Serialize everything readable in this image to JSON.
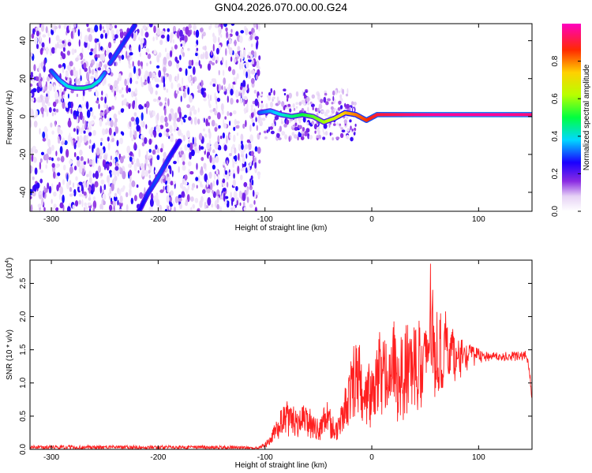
{
  "chart_data": [
    {
      "type": "heatmap",
      "title": "GN04.2026.070.00.00.G24",
      "xlabel": "Height of straight line (km)",
      "ylabel": "Frequency (Hz)",
      "xlim": [
        -320,
        150
      ],
      "ylim": [
        -50,
        49
      ],
      "xticks": [
        -300,
        -200,
        -100,
        0,
        100
      ],
      "yticks": [
        -40,
        -20,
        0,
        20,
        40
      ],
      "colorbar": {
        "label": "Normalized spectral amplitude",
        "range": [
          0,
          1
        ],
        "ticks": [
          "0.0",
          "0.2",
          "0.4",
          "0.6",
          "0.8"
        ],
        "tick_values": [
          0,
          0.2,
          0.4,
          0.6,
          0.8
        ]
      },
      "traces": [
        {
          "name": "main-signal",
          "x": [
            -105,
            -95,
            -85,
            -75,
            -65,
            -55,
            -45,
            -35,
            -25,
            -15,
            -5,
            5,
            20,
            40,
            60,
            80,
            100,
            120,
            150
          ],
          "y": [
            2,
            3,
            1,
            0,
            1,
            0,
            -3,
            -1,
            2,
            1,
            -2,
            1,
            1,
            1,
            1,
            1,
            1,
            1,
            1
          ],
          "amplitude": [
            0.3,
            0.35,
            0.4,
            0.45,
            0.5,
            0.55,
            0.6,
            0.65,
            0.75,
            0.8,
            0.85,
            0.9,
            0.92,
            0.95,
            0.97,
            0.97,
            0.97,
            0.97,
            0.95
          ]
        },
        {
          "name": "ghost-arc",
          "x": [
            -300,
            -292,
            -285,
            -278,
            -270,
            -262,
            -255,
            -250
          ],
          "y": [
            24,
            19,
            16,
            15,
            15,
            16,
            19,
            23
          ],
          "amplitude": [
            0.3,
            0.35,
            0.4,
            0.42,
            0.45,
            0.42,
            0.38,
            0.32
          ]
        },
        {
          "name": "ghost-rising",
          "x": [
            -245,
            -238,
            -230,
            -222
          ],
          "y": [
            28,
            34,
            41,
            48
          ],
          "amplitude": [
            0.3,
            0.3,
            0.28,
            0.28
          ]
        },
        {
          "name": "ghost-falling",
          "x": [
            -218,
            -210,
            -200,
            -190,
            -180
          ],
          "y": [
            -50,
            -41,
            -32,
            -22,
            -13
          ],
          "amplitude": [
            0.25,
            0.28,
            0.3,
            0.28,
            0.25
          ]
        }
      ]
    },
    {
      "type": "line",
      "title": "",
      "xlabel": "Height of straight line (km)",
      "ylabel": "SNR (10 * v/v)",
      "yscale_label": "(x10",
      "yscale_exponent": "4",
      "xlim": [
        -320,
        150
      ],
      "ylim": [
        0,
        2.85
      ],
      "xticks": [
        -300,
        -200,
        -100,
        0,
        100
      ],
      "yticks": [
        "0.0",
        "0.5",
        "1.0",
        "1.5",
        "2.0",
        "2.5"
      ],
      "ytick_values": [
        0,
        0.5,
        1.0,
        1.5,
        2.0,
        2.5
      ],
      "color": "#ff2020",
      "series": [
        {
          "name": "SNR",
          "x": [
            -320,
            -300,
            -250,
            -200,
            -150,
            -105,
            -95,
            -90,
            -85,
            -80,
            -75,
            -70,
            -65,
            -60,
            -55,
            -50,
            -45,
            -40,
            -35,
            -30,
            -25,
            -20,
            -15,
            -10,
            -5,
            0,
            5,
            10,
            15,
            20,
            25,
            30,
            35,
            40,
            45,
            50,
            55,
            60,
            65,
            70,
            75,
            80,
            85,
            90,
            95,
            100,
            110,
            120,
            130,
            140,
            145,
            148,
            150
          ],
          "y": [
            0.03,
            0.04,
            0.03,
            0.03,
            0.03,
            0.02,
            0.1,
            0.25,
            0.35,
            0.55,
            0.5,
            0.3,
            0.45,
            0.5,
            0.35,
            0.25,
            0.55,
            0.45,
            0.25,
            0.4,
            0.65,
            0.85,
            1.1,
            1.2,
            0.95,
            0.75,
            1.0,
            1.2,
            1.05,
            1.3,
            1.1,
            1.3,
            1.25,
            1.45,
            1.1,
            1.35,
            1.7,
            1.4,
            1.35,
            1.55,
            1.3,
            1.3,
            1.45,
            1.4,
            1.5,
            1.45,
            1.4,
            1.38,
            1.4,
            1.38,
            1.45,
            1.1,
            0.75
          ],
          "range_low": [
            0.0,
            0.0,
            0.0,
            0.0,
            0.0,
            0.0,
            0.05,
            0.1,
            0.15,
            0.2,
            0.15,
            0.12,
            0.2,
            0.18,
            0.15,
            0.1,
            0.2,
            0.15,
            0.1,
            0.15,
            0.3,
            0.4,
            0.45,
            0.4,
            0.35,
            0.3,
            0.35,
            0.4,
            0.35,
            0.4,
            0.35,
            0.45,
            0.45,
            0.6,
            0.25,
            0.6,
            0.7,
            0.75,
            0.85,
            0.9,
            1.0,
            1.05,
            1.1,
            1.2,
            1.25,
            1.3,
            1.32,
            1.32,
            1.33,
            1.33,
            1.35,
            1.0,
            0.7
          ],
          "range_high": [
            0.06,
            0.07,
            0.06,
            0.06,
            0.06,
            0.05,
            0.2,
            0.45,
            0.6,
            0.75,
            0.7,
            0.55,
            0.65,
            0.7,
            0.55,
            0.45,
            0.75,
            0.7,
            0.45,
            0.6,
            0.95,
            1.4,
            1.7,
            1.55,
            1.35,
            1.35,
            1.8,
            1.75,
            1.55,
            2.0,
            1.7,
            2.1,
            1.9,
            2.3,
            2.0,
            2.15,
            2.85,
            2.2,
            2.05,
            2.1,
            1.85,
            1.7,
            1.65,
            1.6,
            1.55,
            1.52,
            1.48,
            1.45,
            1.48,
            1.47,
            1.5,
            1.2,
            0.8
          ]
        }
      ]
    }
  ]
}
